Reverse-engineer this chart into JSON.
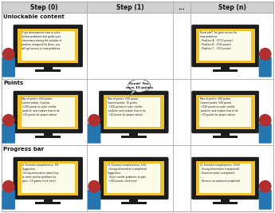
{
  "col_headers": [
    "Step (0)",
    "Step (1)",
    "...",
    "Step (n)"
  ],
  "row_labels": [
    "Unlockable content",
    "Points",
    "Progress bar"
  ],
  "grid_color": "#aaaaaa",
  "header_bg": "#d0d0d0",
  "cells": {
    "row0_col0": {
      "has_monitor": true,
      "person_side": "left",
      "screen_text": "If you demonstrate how to solve\nsimilar problems and guide your\nclassmates during the solution of\nproblem assigned for them, you\nwill get access to new problems"
    },
    "row0_col1": {
      "has_monitor": false
    },
    "row0_col2": {
      "has_monitor": false
    },
    "row0_col3": {
      "has_monitor": true,
      "person_side": "right",
      "screen_text": "Great job!! You gain access for\nnew problems:\n- Problem A - (3000 points)\n- Problem B - (500 points)\n- Problem C - (300 points)"
    },
    "row1_col0": {
      "has_monitor": true,
      "person_side": "left",
      "screen_text": "Max of points: 500 points\nCurrent points: 0 points\n +100 points to solve similar\n problem and explain how to do\n +10 points for proper advice"
    },
    "row1_col1": {
      "has_monitor": true,
      "person_side": "left",
      "has_speech_bubble": true,
      "speech_text": "Great! You\nearn 10 points",
      "screen_text": "Max of points: 500 points\nCurrent points: 10 points\n +100 points to solve similar\n problem and explain how to do\n +10 points for proper advice"
    },
    "row1_col2": {
      "has_monitor": false
    },
    "row1_col3": {
      "has_monitor": true,
      "person_side": "right",
      "screen_text": "Max of points: 500 points\nCurrent points: 500 points\n +100 points to solve similar\n problem and explain how to do\n +10 points for proper advice"
    },
    "row2_col0": {
      "has_monitor": true,
      "person_side": "left",
      "screen_text": "CL Scenario completeness: 0%\nSuggestion:\n- Giving information about how\n to solve similar problems to\n gain +10 points (click here)"
    },
    "row2_col1": {
      "has_monitor": true,
      "person_side": "left",
      "screen_text": "CL Scenario completeness: 10%\n- Giving information (completed)\nSuggestion:\n- Solve similar problems to gain\n +100 points (click here)"
    },
    "row2_col2": {
      "has_monitor": false
    },
    "row2_col3": {
      "has_monitor": true,
      "person_side": "right",
      "screen_text": "CL Scenario completeness: 100%\n- Giving information (completed)\n- Demonstration (completed)\n- ...\n- Receive acceptance(completed)"
    }
  }
}
